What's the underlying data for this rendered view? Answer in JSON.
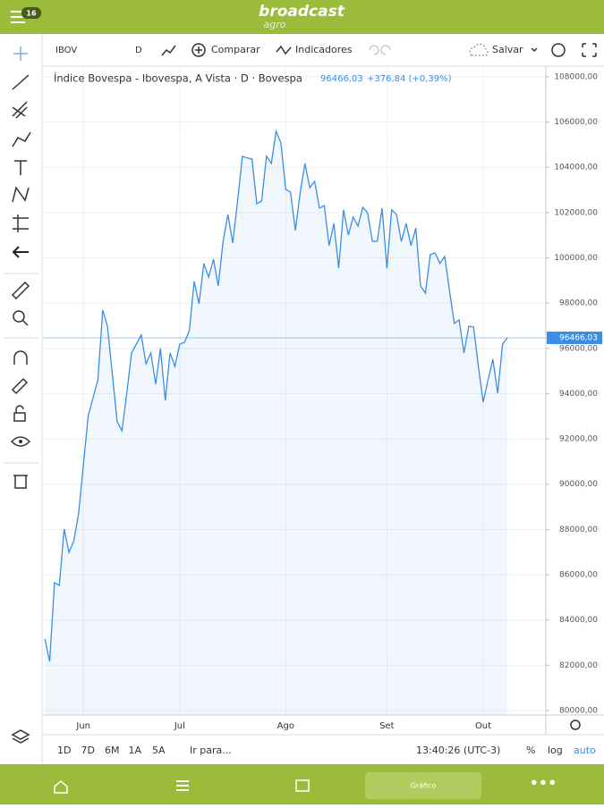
{
  "app": {
    "badge": "16",
    "logo": "broadcast",
    "logo_sub": "agro"
  },
  "toolbar": {
    "symbol": "IBOV",
    "interval": "D",
    "compare": "Comparar",
    "indicators": "Indicadores",
    "save": "Salvar"
  },
  "bottom_bar": {
    "ranges": [
      "1D",
      "7D",
      "6M",
      "1A",
      "5A"
    ],
    "goto": "Ir para...",
    "clock": "13:40:26 (UTC-3)",
    "percent": "%",
    "log": "log",
    "auto": "auto"
  },
  "nav": {
    "active": "Gráfico"
  },
  "chart_data": {
    "type": "line",
    "title": "Índice Bovespa - Ibovespa, A Vista · D · Bovespa",
    "last_price": {
      "value": 96466.03,
      "label": "96466,03"
    },
    "change": "+376,84 (+0,39%)",
    "series": [
      {
        "name": "IBOV",
        "color": "#3a8ee6",
        "values": [
          83160,
          82170,
          85650,
          85530,
          88020,
          86990,
          87500,
          88690,
          90860,
          93030,
          93820,
          94610,
          97690,
          96980,
          94890,
          92760,
          92360,
          94020,
          95800,
          96190,
          96590,
          95320,
          95800,
          94420,
          96000,
          93700,
          95800,
          95200,
          96190,
          96270,
          96790,
          98960,
          97970,
          99750,
          99150,
          99940,
          98760,
          100730,
          101920,
          100660,
          102510,
          104490,
          104410,
          104370,
          102390,
          102510,
          104490,
          104170,
          105590,
          105080,
          103030,
          102900,
          101210,
          102900,
          104170,
          103100,
          103380,
          102200,
          102310,
          100540,
          101520,
          99550,
          102120,
          101010,
          101800,
          101400,
          102230,
          101990,
          100730,
          100730,
          102200,
          99550,
          102120,
          101920,
          100730,
          101520,
          100540,
          101320,
          98760,
          98440,
          100140,
          100220,
          99750,
          100060,
          98560,
          97100,
          97260,
          95800,
          96980,
          96940,
          95200,
          93620,
          94610,
          95520,
          94020,
          96190,
          96466.03
        ]
      }
    ],
    "xlim": [
      -0.4,
      104
    ],
    "xticks": [
      {
        "value": 8,
        "label": "Jun"
      },
      {
        "value": 28,
        "label": "Jul"
      },
      {
        "value": 50,
        "label": "Ago"
      },
      {
        "value": 71,
        "label": "Set"
      },
      {
        "value": 91,
        "label": "Out"
      }
    ],
    "ylim": [
      79800,
      108470
    ],
    "yticks": [
      {
        "value": 80000,
        "label": "80000,00"
      },
      {
        "value": 82000,
        "label": "82000,00"
      },
      {
        "value": 84000,
        "label": "84000,00"
      },
      {
        "value": 86000,
        "label": "86000,00"
      },
      {
        "value": 88000,
        "label": "88000,00"
      },
      {
        "value": 90000,
        "label": "90000,00"
      },
      {
        "value": 92000,
        "label": "92000,00"
      },
      {
        "value": 94000,
        "label": "94000,00"
      },
      {
        "value": 96000,
        "label": "96000,00"
      },
      {
        "value": 98000,
        "label": "98000,00"
      },
      {
        "value": 100000,
        "label": "100000,00"
      },
      {
        "value": 102000,
        "label": "102000,00"
      },
      {
        "value": 104000,
        "label": "104000,00"
      },
      {
        "value": 106000,
        "label": "106000,00"
      },
      {
        "value": 108000,
        "label": "108000,00"
      }
    ],
    "grid": true
  }
}
